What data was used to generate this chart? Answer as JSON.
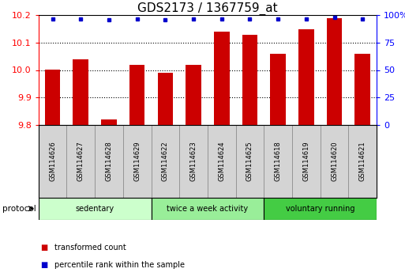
{
  "title": "GDS2173 / 1367759_at",
  "categories": [
    "GSM114626",
    "GSM114627",
    "GSM114628",
    "GSM114629",
    "GSM114622",
    "GSM114623",
    "GSM114624",
    "GSM114625",
    "GSM114618",
    "GSM114619",
    "GSM114620",
    "GSM114621"
  ],
  "red_values": [
    10.0,
    10.04,
    9.82,
    10.02,
    9.99,
    10.02,
    10.14,
    10.13,
    10.06,
    10.15,
    10.19,
    10.06
  ],
  "blue_values": [
    97,
    97,
    96,
    97,
    96,
    97,
    97,
    97,
    97,
    97,
    98,
    97
  ],
  "ylim_left": [
    9.8,
    10.2
  ],
  "ylim_right": [
    0,
    100
  ],
  "yticks_left": [
    9.8,
    9.9,
    10.0,
    10.1,
    10.2
  ],
  "yticks_right": [
    0,
    25,
    50,
    75,
    100
  ],
  "bar_color": "#cc0000",
  "dot_color": "#0000cc",
  "groups": [
    {
      "label": "sedentary",
      "start": 0,
      "end": 4,
      "color": "#ccffcc"
    },
    {
      "label": "twice a week activity",
      "start": 4,
      "end": 8,
      "color": "#99ee99"
    },
    {
      "label": "voluntary running",
      "start": 8,
      "end": 12,
      "color": "#44cc44"
    }
  ],
  "protocol_label": "protocol",
  "legend_red": "transformed count",
  "legend_blue": "percentile rank within the sample",
  "background_color": "#ffffff",
  "plot_bg_color": "#ffffff",
  "title_fontsize": 11,
  "axis_label_fontsize": 8,
  "sample_box_color": "#d4d4d4",
  "sample_box_edge": "#888888"
}
